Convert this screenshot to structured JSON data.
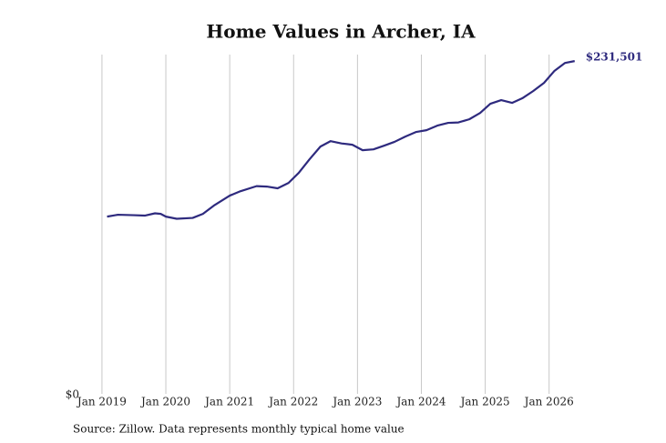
{
  "chart_data": {
    "type": "line",
    "title": "Home Values in Archer, IA",
    "source": "Source: Zillow. Data represents monthly typical home value",
    "x": [
      2019.08,
      2019.25,
      2019.5,
      2019.67,
      2019.83,
      2019.92,
      2020.0,
      2020.17,
      2020.42,
      2020.58,
      2020.75,
      2021.0,
      2021.17,
      2021.42,
      2021.58,
      2021.75,
      2021.92,
      2022.08,
      2022.25,
      2022.42,
      2022.58,
      2022.75,
      2022.92,
      2023.08,
      2023.25,
      2023.42,
      2023.58,
      2023.75,
      2023.92,
      2024.08,
      2024.25,
      2024.42,
      2024.58,
      2024.75,
      2024.92,
      2025.08,
      2025.25,
      2025.42,
      2025.58,
      2025.75,
      2025.92,
      2026.08,
      2026.25,
      2026.4
    ],
    "series": [
      {
        "name": "Home value",
        "color": "#2e2a7e",
        "values": [
          123300,
          124600,
          124300,
          124000,
          125600,
          125200,
          123300,
          121800,
          122400,
          125200,
          130900,
          137900,
          141000,
          144500,
          144200,
          143000,
          146700,
          153700,
          163200,
          172000,
          175800,
          174200,
          173300,
          169500,
          170100,
          172700,
          175300,
          179000,
          182200,
          183400,
          186600,
          188500,
          188800,
          191000,
          195400,
          201800,
          204300,
          202400,
          205600,
          210600,
          216300,
          224500,
          230200,
          231501
        ],
        "value_labels": [
          null,
          null,
          null,
          null,
          null,
          null,
          null,
          null,
          null,
          null,
          null,
          null,
          null,
          null,
          null,
          null,
          null,
          null,
          null,
          null,
          null,
          null,
          null,
          null,
          null,
          null,
          null,
          null,
          null,
          null,
          null,
          null,
          null,
          null,
          null,
          null,
          null,
          null,
          null,
          null,
          null,
          null,
          null,
          "$231,501"
        ]
      }
    ],
    "xlim": [
      2018.83,
      2026.86
    ],
    "xticks": [
      {
        "value": 2019,
        "label": "Jan 2019"
      },
      {
        "value": 2020,
        "label": "Jan 2020"
      },
      {
        "value": 2021,
        "label": "Jan 2021"
      },
      {
        "value": 2022,
        "label": "Jan 2022"
      },
      {
        "value": 2023,
        "label": "Jan 2023"
      },
      {
        "value": 2024,
        "label": "Jan 2024"
      },
      {
        "value": 2025,
        "label": "Jan 2025"
      },
      {
        "value": 2026,
        "label": "Jan 2026"
      }
    ],
    "ylim": [
      0,
      236000
    ],
    "yticks": [
      {
        "value": 0,
        "label": "$0"
      }
    ],
    "grid": "x"
  }
}
